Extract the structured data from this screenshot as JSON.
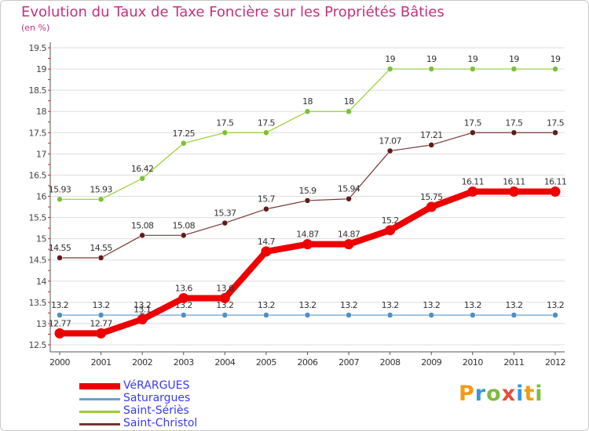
{
  "title": "Evolution du Taux de Taxe Foncière sur les Propriétés Bâties",
  "unit_label": "(en %)",
  "colors": {
    "title": "#c5317c",
    "axis": "#555555",
    "grid": "#dddddd",
    "tick_red": "#d42020",
    "legend_text": "#3a3af0"
  },
  "chart_data": {
    "type": "line",
    "title": "Evolution du Taux de Taxe Foncière sur les Propriétés Bâties",
    "ylabel": "(en %)",
    "xlabel": "",
    "x": [
      "2000",
      "2001",
      "2002",
      "2003",
      "2004",
      "2005",
      "2006",
      "2007",
      "2008",
      "2009",
      "2010",
      "2011",
      "2012"
    ],
    "ylim": [
      12.5,
      19.5
    ],
    "yticks": [
      "12.5",
      "13",
      "13.5",
      "14",
      "14.5",
      "15",
      "15.5",
      "16",
      "16.5",
      "17",
      "17.5",
      "18",
      "18.5",
      "19",
      "19.5"
    ],
    "grid": true,
    "legend_position": "bottom-left",
    "series": [
      {
        "name": "Saint-Sériès",
        "color": "#9acd32",
        "marker_color": "#7cbf3f",
        "style": "thin",
        "values": [
          15.93,
          15.93,
          16.42,
          17.25,
          17.5,
          17.5,
          18,
          18,
          19,
          19,
          19,
          19,
          19
        ],
        "labels": [
          "15.93",
          "15.93",
          "16.42",
          "17.25",
          "17.5",
          "17.5",
          "18",
          "18",
          "19",
          "19",
          "19",
          "19",
          "19"
        ]
      },
      {
        "name": "Saint-Christol",
        "color": "#7a3535",
        "marker_color": "#5e1c1c",
        "style": "thin",
        "values": [
          14.55,
          14.55,
          15.08,
          15.08,
          15.37,
          15.7,
          15.9,
          15.94,
          17.07,
          17.21,
          17.5,
          17.5,
          17.5
        ],
        "labels": [
          "14.55",
          "14.55",
          "15.08",
          "15.08",
          "15.37",
          "15.7",
          "15.9",
          "15.94",
          "17.07",
          "17.21",
          "17.5",
          "17.5",
          "17.5"
        ]
      },
      {
        "name": "Saturargues",
        "color": "#6aa1cd",
        "marker_color": "#4f8fc4",
        "style": "thin",
        "values": [
          13.2,
          13.2,
          13.2,
          13.2,
          13.2,
          13.2,
          13.2,
          13.2,
          13.2,
          13.2,
          13.2,
          13.2,
          13.2
        ],
        "labels": [
          "13.2",
          "13.2",
          "13.2",
          "13.2",
          "13.2",
          "13.2",
          "13.2",
          "13.2",
          "13.2",
          "13.2",
          "13.2",
          "13.2",
          "13.2"
        ]
      },
      {
        "name": "VéRARGUES",
        "color": "#ee0000",
        "marker_color": "#ee0000",
        "style": "thick",
        "values": [
          12.77,
          12.77,
          13.1,
          13.6,
          13.6,
          14.7,
          14.87,
          14.87,
          15.2,
          15.75,
          16.11,
          16.11,
          16.11
        ],
        "labels": [
          "12.77",
          "12.77",
          "13.1",
          "13.6",
          "13.6",
          "14.7",
          "14.87",
          "14.87",
          "15.2",
          "15.75",
          "16.11",
          "16.11",
          "16.11"
        ]
      }
    ]
  },
  "legend": [
    {
      "name": "VéRARGUES",
      "color": "#ee0000",
      "style": "thick"
    },
    {
      "name": "Saturargues",
      "color": "#6aa1cd",
      "style": "thin"
    },
    {
      "name": "Saint-Sériès",
      "color": "#9acd32",
      "style": "thin"
    },
    {
      "name": "Saint-Christol",
      "color": "#7a3535",
      "style": "thin"
    }
  ],
  "logo": {
    "text": "Proxiti",
    "letters": [
      {
        "ch": "P",
        "color": "#f39c12"
      },
      {
        "ch": "r",
        "color": "#3498db"
      },
      {
        "ch": "o",
        "color": "#7dbb42"
      },
      {
        "ch": "x",
        "color": "#e74c3c"
      },
      {
        "ch": "i",
        "color": "#3498db"
      },
      {
        "ch": "t",
        "color": "#f39c12"
      },
      {
        "ch": "i",
        "color": "#7dbb42"
      }
    ]
  }
}
